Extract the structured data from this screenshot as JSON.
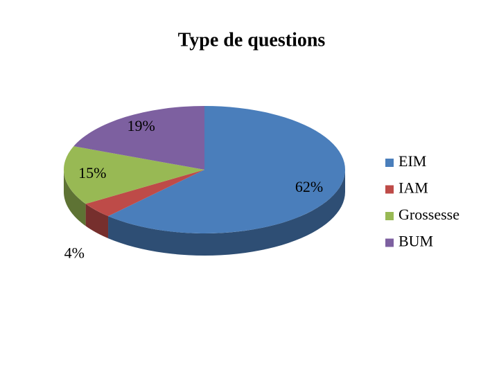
{
  "chart_data": {
    "type": "pie",
    "title": "Type de questions",
    "categories": [
      "EIM",
      "IAM",
      "Grossesse",
      "BUM"
    ],
    "values": [
      62,
      4,
      15,
      19
    ],
    "value_labels": [
      "62%",
      "4%",
      "15%",
      "19%"
    ],
    "colors": [
      "#4a7ebb",
      "#be4b48",
      "#98b954",
      "#7d60a0"
    ],
    "legend": "right"
  }
}
